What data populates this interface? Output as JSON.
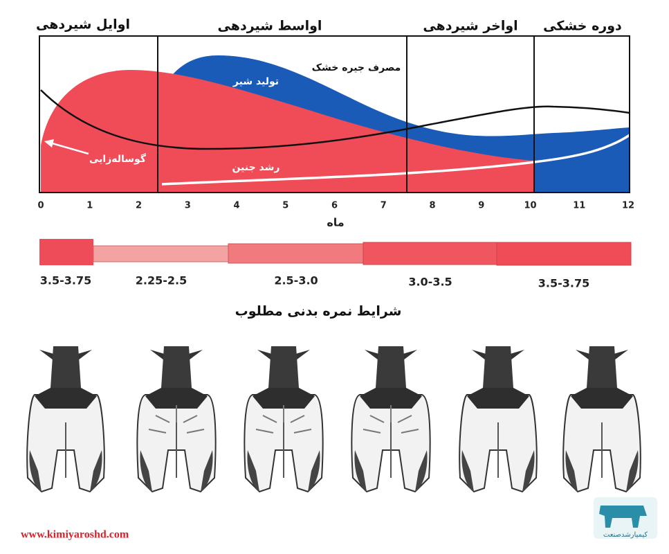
{
  "phases": [
    "اوایل شیردهی",
    "اواسط شیردهی",
    "اواخر شیردهی",
    "دوره خشکی"
  ],
  "curve_labels": {
    "dmi": "مصرف جیره خشک",
    "milk": "تولید شیر",
    "calving": "گوساله‌زایی",
    "fetal": "رشد جنین"
  },
  "x_axis": {
    "ticks": [
      0,
      1,
      2,
      3,
      4,
      5,
      6,
      7,
      8,
      9,
      10,
      11,
      12
    ],
    "label": "ماه"
  },
  "bcs": {
    "ranges": [
      "3.5-3.75",
      "2.25-2.5",
      "2.5-3.0",
      "3.0-3.5",
      "3.5-3.75"
    ],
    "title": "شرایط نمره بدنی مطلوب"
  },
  "footer": {
    "website": "www.kimiyaroshd.com",
    "logo_text": "کیمیارشدصنعت"
  }
}
